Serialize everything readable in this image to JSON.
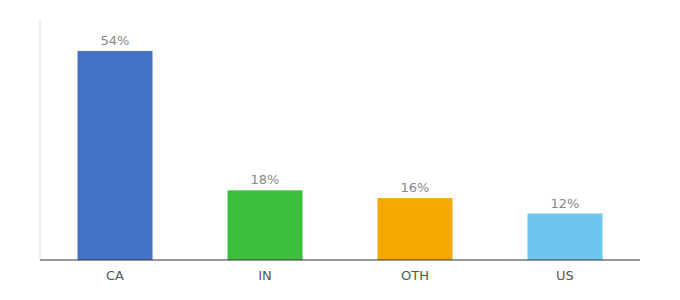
{
  "chart_data": {
    "type": "bar",
    "categories": [
      "CA",
      "IN",
      "OTH",
      "US"
    ],
    "values": [
      54,
      18,
      16,
      12
    ],
    "value_labels": [
      "54%",
      "18%",
      "16%",
      "12%"
    ],
    "colors": [
      "#4472C4",
      "#3DBE3D",
      "#F5A800",
      "#6EC6F0"
    ],
    "ylim": [
      0,
      62
    ],
    "data_labels": true,
    "tick_labels": "x"
  }
}
